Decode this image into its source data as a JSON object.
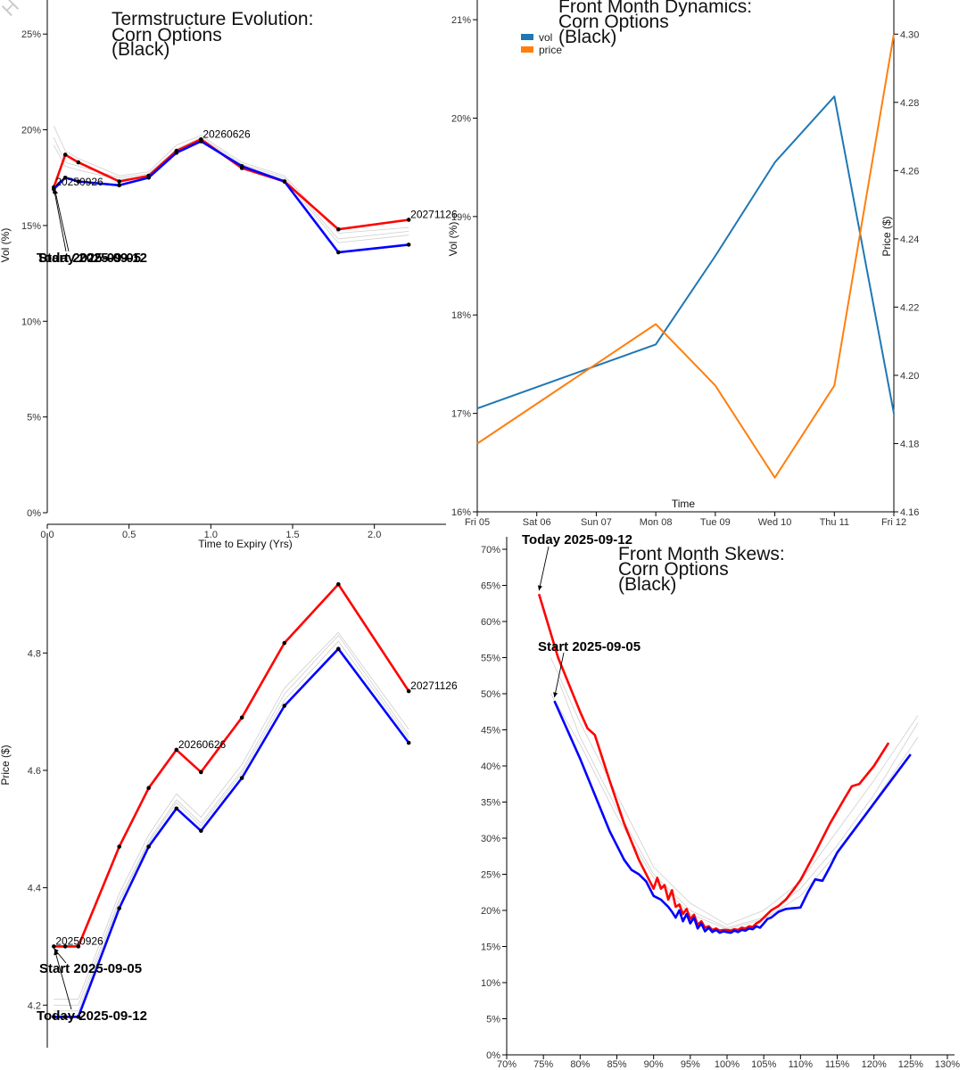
{
  "colors": {
    "today": "#ff0000",
    "start": "#0000ff",
    "history": "#cfcfcf",
    "vol": "#1f77b4",
    "price": "#ff7f0e"
  },
  "chart_data": [
    {
      "id": "term_vol",
      "type": "line",
      "title_lines": [
        "Termstructure Evolution:",
        "Corn Options",
        "(Black)"
      ],
      "xlabel": "Time to Expiry (Yrs)",
      "ylabel": "Vol (%)",
      "xlim": [
        0,
        2.4
      ],
      "ylim": [
        0,
        26.5
      ],
      "xticks": [
        {
          "v": 0,
          "label": "0.0"
        },
        {
          "v": 0.5,
          "label": "0.5"
        },
        {
          "v": 1,
          "label": "1.0"
        },
        {
          "v": 1.5,
          "label": "1.5"
        },
        {
          "v": 2,
          "label": "2.0"
        }
      ],
      "yticks": [
        {
          "v": 0,
          "label": "0%"
        },
        {
          "v": 5,
          "label": "5%"
        },
        {
          "v": 10,
          "label": "10%"
        },
        {
          "v": 15,
          "label": "15%"
        },
        {
          "v": 20,
          "label": "20%"
        },
        {
          "v": 25,
          "label": "25%"
        }
      ],
      "x": [
        0.04,
        0.11,
        0.19,
        0.44,
        0.62,
        0.79,
        0.94,
        1.19,
        1.45,
        1.78,
        2.21
      ],
      "series": [
        {
          "name": "Today 2025-09-12",
          "role": "today",
          "values": [
            17.0,
            18.7,
            18.3,
            17.3,
            17.6,
            18.9,
            19.5,
            18.0,
            17.3,
            14.8,
            15.3
          ]
        },
        {
          "name": "Start 2025-09-05",
          "role": "start",
          "values": [
            16.9,
            17.5,
            17.3,
            17.1,
            17.5,
            18.8,
            19.4,
            18.1,
            17.3,
            13.6,
            14.0
          ]
        }
      ],
      "history": [
        [
          20.2,
          18.9,
          18.5,
          17.6,
          17.8,
          19.2,
          19.7,
          18.3,
          17.6,
          14.6,
          14.9
        ],
        [
          19.6,
          18.3,
          18.1,
          17.5,
          17.7,
          19.0,
          19.6,
          18.2,
          17.5,
          14.3,
          14.7
        ],
        [
          19.2,
          18.1,
          17.9,
          17.4,
          17.6,
          18.9,
          19.5,
          18.1,
          17.4,
          14.1,
          14.5
        ]
      ],
      "point_labels": [
        {
          "i": 0,
          "text": "20250926"
        },
        {
          "i": 6,
          "text": "20260626"
        },
        {
          "i": 10,
          "text": "20271126"
        }
      ],
      "annotations": [
        {
          "text": "Start 2025-09-05"
        },
        {
          "text": "Today 2025-09-12"
        }
      ]
    },
    {
      "id": "front_dyn",
      "type": "line",
      "title_lines": [
        "Front Month Dynamics:",
        "Corn Options",
        "(Black)"
      ],
      "xlabel": "Time",
      "ylabel": "Vol (%)",
      "y2label": "Price ($)",
      "categories": [
        "Fri 05",
        "Sat 06",
        "Sun 07",
        "Mon 08",
        "Tue 09",
        "Wed 10",
        "Thu 11",
        "Fri 12"
      ],
      "ylim": [
        16,
        21.2
      ],
      "y2lim": [
        4.16,
        4.31
      ],
      "yticks": [
        {
          "v": 16,
          "label": "16%"
        },
        {
          "v": 17,
          "label": "17%"
        },
        {
          "v": 18,
          "label": "18%"
        },
        {
          "v": 19,
          "label": "19%"
        },
        {
          "v": 20,
          "label": "20%"
        },
        {
          "v": 21,
          "label": "21%"
        }
      ],
      "y2ticks": [
        {
          "v": 4.16,
          "label": "4.16"
        },
        {
          "v": 4.18,
          "label": "4.18"
        },
        {
          "v": 4.2,
          "label": "4.20"
        },
        {
          "v": 4.22,
          "label": "4.22"
        },
        {
          "v": 4.24,
          "label": "4.24"
        },
        {
          "v": 4.26,
          "label": "4.26"
        },
        {
          "v": 4.28,
          "label": "4.28"
        },
        {
          "v": 4.3,
          "label": "4.30"
        }
      ],
      "series": [
        {
          "name": "vol",
          "axis": "left",
          "x": [
            0,
            3,
            4,
            5,
            6,
            7
          ],
          "values": [
            17.05,
            17.7,
            18.6,
            19.55,
            20.22,
            17.0
          ]
        },
        {
          "name": "price",
          "axis": "right",
          "x": [
            0,
            3,
            4,
            5,
            6,
            7
          ],
          "values": [
            4.18,
            4.215,
            4.197,
            4.17,
            4.197,
            4.3
          ]
        }
      ],
      "legend": [
        "vol",
        "price"
      ]
    },
    {
      "id": "term_price",
      "type": "line",
      "xlabel": "",
      "ylabel": "Price ($)",
      "xlim": [
        0,
        2.4
      ],
      "ylim": [
        4.17,
        4.96
      ],
      "yticks": [
        {
          "v": 4.2,
          "label": "4.2"
        },
        {
          "v": 4.4,
          "label": "4.4"
        },
        {
          "v": 4.6,
          "label": "4.6"
        },
        {
          "v": 4.8,
          "label": "4.8"
        }
      ],
      "x": [
        0.04,
        0.11,
        0.19,
        0.44,
        0.62,
        0.79,
        0.94,
        1.19,
        1.45,
        1.78,
        2.21
      ],
      "series": [
        {
          "name": "Today 2025-09-12",
          "role": "today",
          "values": [
            4.3,
            4.3,
            4.3,
            4.47,
            4.57,
            4.635,
            4.597,
            4.69,
            4.817,
            4.917,
            4.735
          ]
        },
        {
          "name": "Start 2025-09-05",
          "role": "start",
          "values": [
            4.18,
            4.18,
            4.18,
            4.365,
            4.47,
            4.535,
            4.497,
            4.587,
            4.71,
            4.807,
            4.647
          ]
        }
      ],
      "history": [
        [
          4.2,
          4.2,
          4.2,
          4.38,
          4.48,
          4.55,
          4.51,
          4.6,
          4.73,
          4.83,
          4.66
        ],
        [
          4.19,
          4.19,
          4.19,
          4.375,
          4.476,
          4.545,
          4.505,
          4.595,
          4.72,
          4.82,
          4.655
        ],
        [
          4.21,
          4.21,
          4.21,
          4.39,
          4.49,
          4.56,
          4.52,
          4.61,
          4.74,
          4.835,
          4.67
        ]
      ],
      "point_labels": [
        {
          "i": 0,
          "text": "20250926"
        },
        {
          "i": 5,
          "text": "20260626"
        },
        {
          "i": 10,
          "text": "20271126"
        }
      ],
      "annotations": [
        {
          "text": "Start 2025-09-05"
        },
        {
          "text": "Today 2025-09-12"
        }
      ]
    },
    {
      "id": "skew",
      "type": "line",
      "title_lines": [
        "Front Month Skews:",
        "Corn Options",
        "(Black)"
      ],
      "xlabel": "",
      "ylabel": "",
      "xlim": [
        70,
        130
      ],
      "ylim": [
        0,
        70.5
      ],
      "xticks": [
        {
          "v": 70,
          "label": "70%"
        },
        {
          "v": 75,
          "label": "75%"
        },
        {
          "v": 80,
          "label": "80%"
        },
        {
          "v": 85,
          "label": "85%"
        },
        {
          "v": 90,
          "label": "90%"
        },
        {
          "v": 95,
          "label": "95%"
        },
        {
          "v": 100,
          "label": "100%"
        },
        {
          "v": 105,
          "label": "105%"
        },
        {
          "v": 110,
          "label": "110%"
        },
        {
          "v": 115,
          "label": "115%"
        },
        {
          "v": 120,
          "label": "120%"
        },
        {
          "v": 125,
          "label": "125%"
        },
        {
          "v": 130,
          "label": "130%"
        }
      ],
      "yticks": [
        {
          "v": 0,
          "label": "0%"
        },
        {
          "v": 5,
          "label": "5%"
        },
        {
          "v": 10,
          "label": "10%"
        },
        {
          "v": 15,
          "label": "15%"
        },
        {
          "v": 20,
          "label": "20%"
        },
        {
          "v": 25,
          "label": "25%"
        },
        {
          "v": 30,
          "label": "30%"
        },
        {
          "v": 35,
          "label": "35%"
        },
        {
          "v": 40,
          "label": "40%"
        },
        {
          "v": 45,
          "label": "45%"
        },
        {
          "v": 50,
          "label": "50%"
        },
        {
          "v": 55,
          "label": "55%"
        },
        {
          "v": 60,
          "label": "60%"
        },
        {
          "v": 65,
          "label": "65%"
        },
        {
          "v": 70,
          "label": "70%"
        }
      ],
      "series": [
        {
          "name": "Today 2025-09-12",
          "role": "today",
          "x": [
            74.4,
            77,
            80,
            81,
            82,
            84,
            86,
            88,
            90,
            90.5,
            91,
            91.5,
            92,
            92.5,
            93,
            93.5,
            94,
            94.5,
            95,
            95.5,
            96,
            96.5,
            97,
            97.5,
            98,
            98.5,
            99,
            99.5,
            100,
            100.5,
            101,
            101.5,
            102,
            102.5,
            103,
            103.5,
            104,
            104.5,
            105,
            106,
            107,
            108,
            109,
            110,
            112,
            114,
            116,
            117,
            118,
            120,
            122
          ],
          "values": [
            63.8,
            55,
            47.5,
            45.2,
            44.3,
            38,
            32,
            27,
            23,
            24.5,
            23,
            23.5,
            21.5,
            22.8,
            20.5,
            20.8,
            19.5,
            20.2,
            18.8,
            19.4,
            18.0,
            18.5,
            17.6,
            17.8,
            17.3,
            17.5,
            17.2,
            17.3,
            17.3,
            17.2,
            17.4,
            17.3,
            17.6,
            17.5,
            17.8,
            17.7,
            18.2,
            18.5,
            19.0,
            20.0,
            20.6,
            21.5,
            22.8,
            24.2,
            28,
            32,
            35.5,
            37.2,
            37.5,
            40,
            43.2
          ]
        },
        {
          "name": "Start 2025-09-05",
          "role": "start",
          "x": [
            76.5,
            80,
            82,
            84,
            86,
            87,
            88,
            89,
            90,
            91,
            92,
            92.5,
            93,
            93.5,
            94,
            94.5,
            95,
            95.5,
            96,
            96.5,
            97,
            97.5,
            98,
            98.5,
            99,
            99.5,
            100,
            100.5,
            101,
            101.5,
            102,
            102.5,
            103,
            103.5,
            104,
            104.5,
            105,
            105.5,
            106,
            107,
            108,
            109,
            110,
            111,
            112,
            113,
            114,
            115,
            125
          ],
          "values": [
            49,
            41,
            36,
            31,
            27,
            25.6,
            25,
            24,
            22,
            21.5,
            20.5,
            19.8,
            19.0,
            20.0,
            18.5,
            19.5,
            18.2,
            19.0,
            17.5,
            18.2,
            17.1,
            17.6,
            17.0,
            17.3,
            16.9,
            17.1,
            17.0,
            16.9,
            17.2,
            17.0,
            17.3,
            17.2,
            17.5,
            17.4,
            17.8,
            17.6,
            18.2,
            18.8,
            19.0,
            19.8,
            20.2,
            20.3,
            20.4,
            22.5,
            24.3,
            24.1,
            26,
            28,
            41.6
          ]
        }
      ],
      "history": [
        [
          77,
          80,
          85,
          90,
          95,
          100,
          105,
          110,
          115,
          120,
          126
        ],
        [
          76,
          80,
          85,
          90,
          95,
          100,
          105,
          110,
          115,
          120,
          126
        ],
        [
          76,
          80,
          85,
          90,
          95,
          100,
          105,
          110,
          115,
          120,
          126
        ]
      ],
      "history_values": [
        [
          52,
          44,
          34,
          25,
          20,
          17.6,
          19,
          23,
          29,
          36,
          46
        ],
        [
          50,
          43,
          33,
          24.5,
          19.5,
          17.4,
          18.8,
          22,
          28,
          35,
          44
        ],
        [
          55,
          46,
          36,
          26,
          21,
          18,
          20,
          24,
          31,
          38,
          47
        ]
      ],
      "annotations": [
        {
          "text": "Today 2025-09-12"
        },
        {
          "text": "Start 2025-09-05"
        }
      ]
    }
  ],
  "watermark": "H"
}
